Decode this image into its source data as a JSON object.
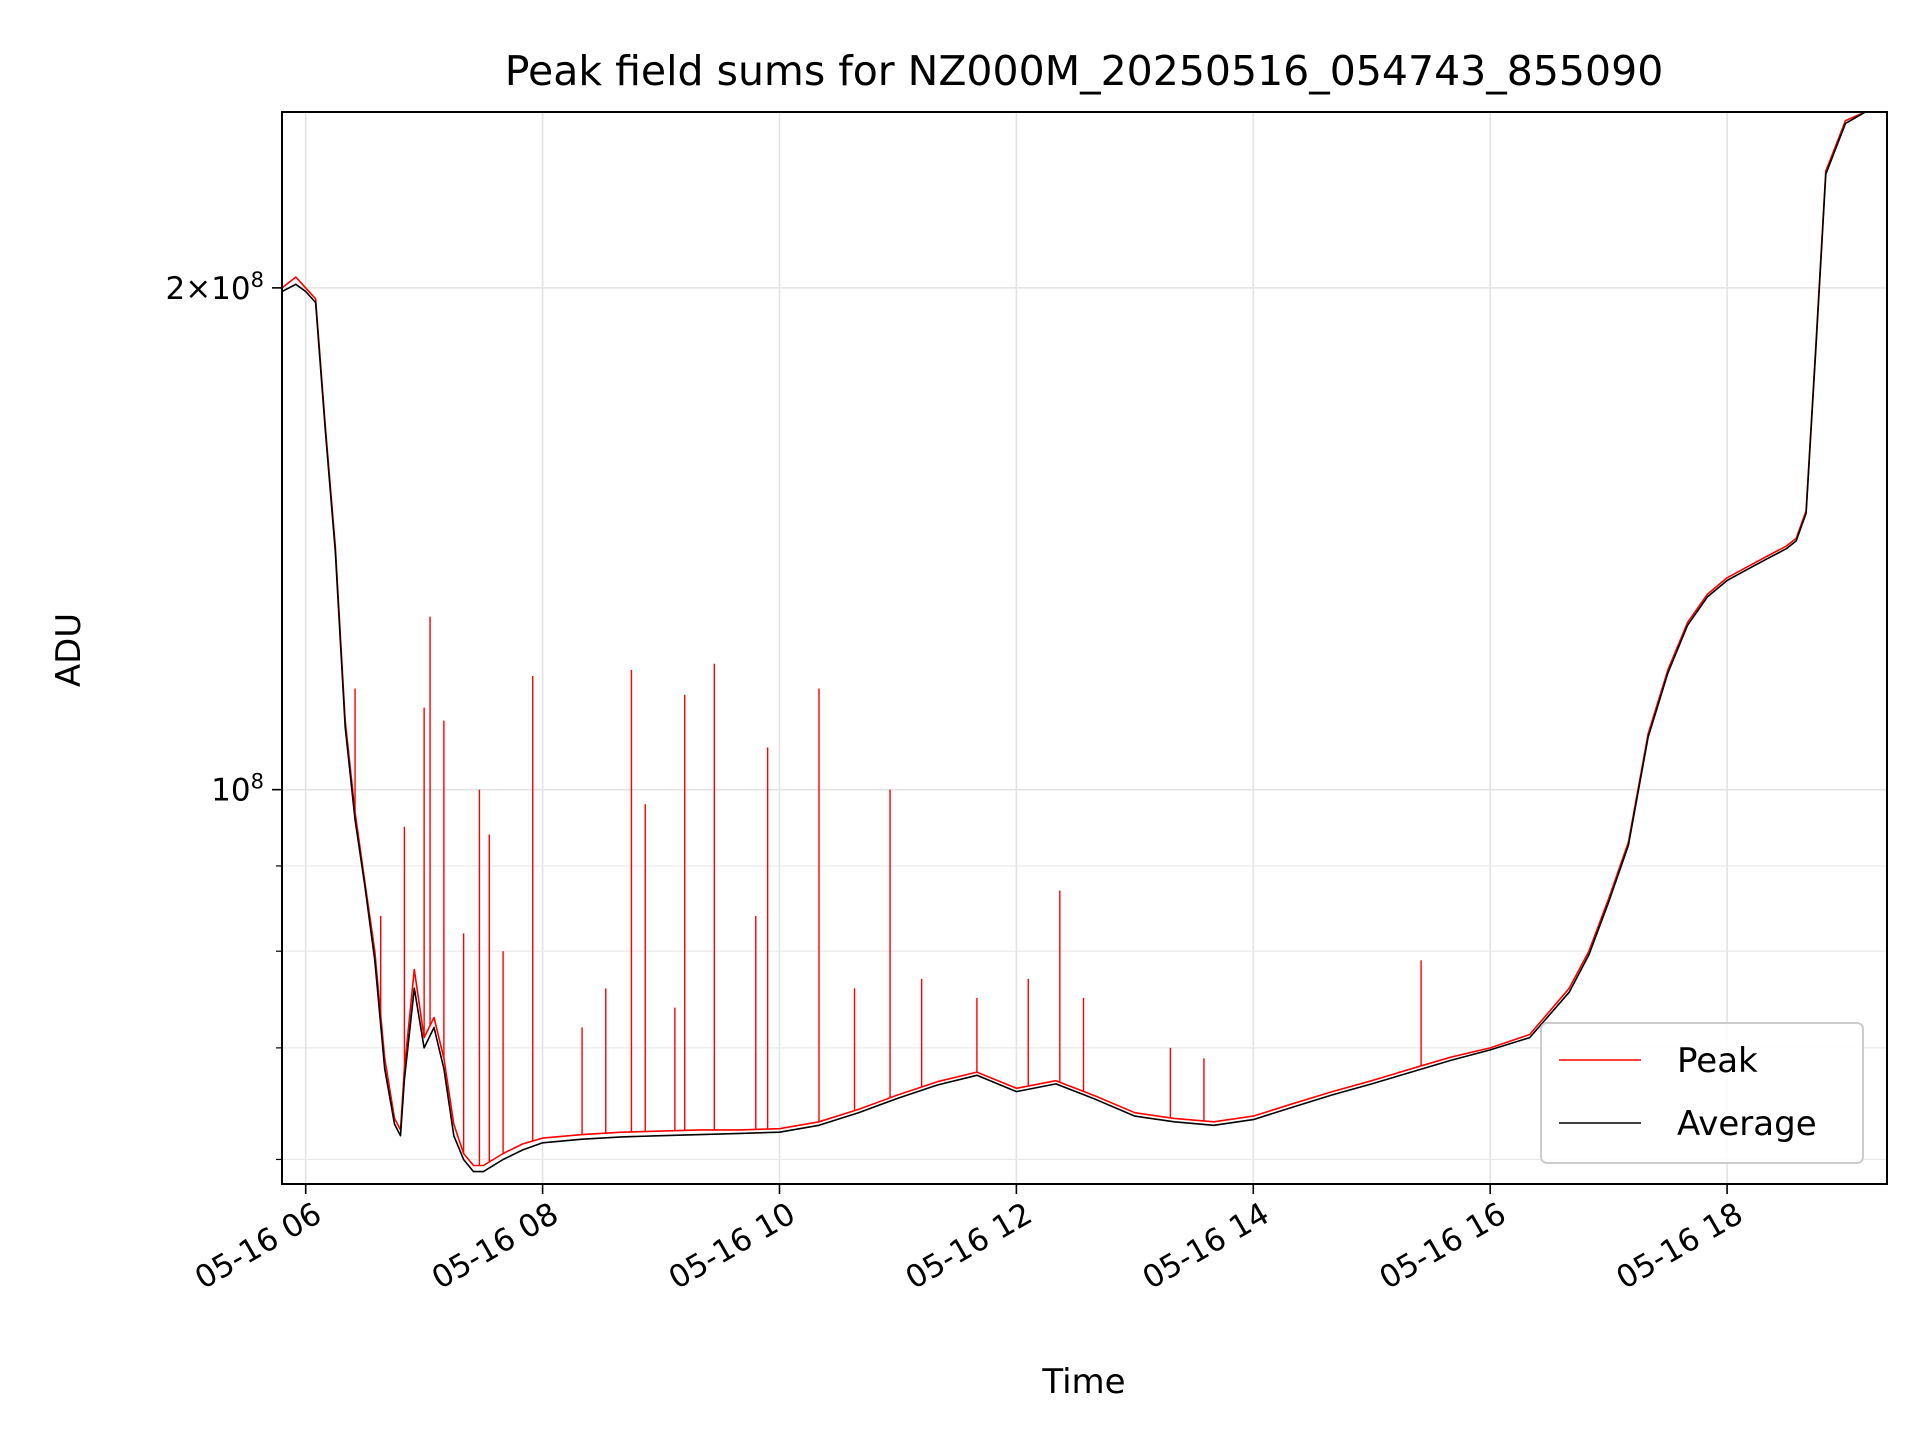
{
  "chart_data": {
    "type": "line",
    "title": "Peak field sums for NZ000M_20250516_054743_855090",
    "xlabel": "Time",
    "ylabel": "ADU",
    "x_scale": "time",
    "y_scale": "log",
    "xlim": [
      "2025-05-16 05:48",
      "2025-05-16 19:21"
    ],
    "ylim": [
      58000000,
      255000000
    ],
    "grid": true,
    "legend_position": "lower right",
    "x_ticks": [
      {
        "value": "2025-05-16 06:00",
        "label": "05-16 06"
      },
      {
        "value": "2025-05-16 08:00",
        "label": "05-16 08"
      },
      {
        "value": "2025-05-16 10:00",
        "label": "05-16 10"
      },
      {
        "value": "2025-05-16 12:00",
        "label": "05-16 12"
      },
      {
        "value": "2025-05-16 14:00",
        "label": "05-16 14"
      },
      {
        "value": "2025-05-16 16:00",
        "label": "05-16 16"
      },
      {
        "value": "2025-05-16 18:00",
        "label": "05-16 18"
      }
    ],
    "y_major_ticks": [
      {
        "value": 200000000,
        "mantissa": "2",
        "times": "×",
        "base": "10",
        "exp": "8"
      },
      {
        "value": 100000000,
        "mantissa": "",
        "times": "",
        "base": "10",
        "exp": "8"
      }
    ],
    "y_minor_ticks": [
      60000000,
      70000000,
      80000000,
      90000000
    ],
    "series": [
      {
        "name": "Peak",
        "color": "#ff0000",
        "x": [
          "2025-05-16 05:48",
          "2025-05-16 05:55",
          "2025-05-16 06:00",
          "2025-05-16 06:05",
          "2025-05-16 06:10",
          "2025-05-16 06:15",
          "2025-05-16 06:20",
          "2025-05-16 06:25",
          "2025-05-16 06:30",
          "2025-05-16 06:35",
          "2025-05-16 06:40",
          "2025-05-16 06:45",
          "2025-05-16 06:48",
          "2025-05-16 06:50",
          "2025-05-16 06:55",
          "2025-05-16 07:00",
          "2025-05-16 07:05",
          "2025-05-16 07:10",
          "2025-05-16 07:15",
          "2025-05-16 07:20",
          "2025-05-16 07:25",
          "2025-05-16 07:30",
          "2025-05-16 07:40",
          "2025-05-16 07:50",
          "2025-05-16 08:00",
          "2025-05-16 08:20",
          "2025-05-16 08:40",
          "2025-05-16 09:00",
          "2025-05-16 09:20",
          "2025-05-16 09:40",
          "2025-05-16 10:00",
          "2025-05-16 10:20",
          "2025-05-16 10:40",
          "2025-05-16 11:00",
          "2025-05-16 11:20",
          "2025-05-16 11:40",
          "2025-05-16 12:00",
          "2025-05-16 12:20",
          "2025-05-16 12:40",
          "2025-05-16 13:00",
          "2025-05-16 13:20",
          "2025-05-16 13:40",
          "2025-05-16 14:00",
          "2025-05-16 14:20",
          "2025-05-16 14:40",
          "2025-05-16 15:00",
          "2025-05-16 15:20",
          "2025-05-16 15:40",
          "2025-05-16 16:00",
          "2025-05-16 16:20",
          "2025-05-16 16:40",
          "2025-05-16 16:50",
          "2025-05-16 17:00",
          "2025-05-16 17:10",
          "2025-05-16 17:20",
          "2025-05-16 17:30",
          "2025-05-16 17:40",
          "2025-05-16 17:50",
          "2025-05-16 18:00",
          "2025-05-16 18:10",
          "2025-05-16 18:20",
          "2025-05-16 18:30",
          "2025-05-16 18:35",
          "2025-05-16 18:40",
          "2025-05-16 18:45",
          "2025-05-16 18:50",
          "2025-05-16 19:00",
          "2025-05-16 19:10",
          "2025-05-16 19:21"
        ],
        "y": [
          200000000,
          203000000,
          200000000,
          197000000,
          165000000,
          140000000,
          110000000,
          97000000,
          88000000,
          80000000,
          69000000,
          63500000,
          62500000,
          68000000,
          78000000,
          71000000,
          73000000,
          69000000,
          63000000,
          60500000,
          59500000,
          59500000,
          60500000,
          61300000,
          61800000,
          62100000,
          62300000,
          62400000,
          62500000,
          62500000,
          62600000,
          63200000,
          64300000,
          65600000,
          66800000,
          67700000,
          66200000,
          66900000,
          65500000,
          64000000,
          63500000,
          63200000,
          63700000,
          64800000,
          65900000,
          66900000,
          68000000,
          69100000,
          70000000,
          71300000,
          76000000,
          80000000,
          86000000,
          93000000,
          108000000,
          118000000,
          126000000,
          131000000,
          134000000,
          136000000,
          138000000,
          140000000,
          141500000,
          147000000,
          185000000,
          235000000,
          252000000,
          255000000,
          255000000
        ]
      },
      {
        "name": "Average",
        "color": "#000000",
        "x": [
          "2025-05-16 05:48",
          "2025-05-16 05:55",
          "2025-05-16 06:00",
          "2025-05-16 06:05",
          "2025-05-16 06:10",
          "2025-05-16 06:15",
          "2025-05-16 06:20",
          "2025-05-16 06:25",
          "2025-05-16 06:30",
          "2025-05-16 06:35",
          "2025-05-16 06:40",
          "2025-05-16 06:45",
          "2025-05-16 06:48",
          "2025-05-16 06:50",
          "2025-05-16 06:55",
          "2025-05-16 07:00",
          "2025-05-16 07:05",
          "2025-05-16 07:10",
          "2025-05-16 07:15",
          "2025-05-16 07:20",
          "2025-05-16 07:25",
          "2025-05-16 07:30",
          "2025-05-16 07:40",
          "2025-05-16 07:50",
          "2025-05-16 08:00",
          "2025-05-16 08:20",
          "2025-05-16 08:40",
          "2025-05-16 09:00",
          "2025-05-16 09:20",
          "2025-05-16 09:40",
          "2025-05-16 10:00",
          "2025-05-16 10:20",
          "2025-05-16 10:40",
          "2025-05-16 11:00",
          "2025-05-16 11:20",
          "2025-05-16 11:40",
          "2025-05-16 12:00",
          "2025-05-16 12:20",
          "2025-05-16 12:40",
          "2025-05-16 13:00",
          "2025-05-16 13:20",
          "2025-05-16 13:40",
          "2025-05-16 14:00",
          "2025-05-16 14:20",
          "2025-05-16 14:40",
          "2025-05-16 15:00",
          "2025-05-16 15:20",
          "2025-05-16 15:40",
          "2025-05-16 16:00",
          "2025-05-16 16:20",
          "2025-05-16 16:40",
          "2025-05-16 16:50",
          "2025-05-16 17:00",
          "2025-05-16 17:10",
          "2025-05-16 17:20",
          "2025-05-16 17:30",
          "2025-05-16 17:40",
          "2025-05-16 17:50",
          "2025-05-16 18:00",
          "2025-05-16 18:10",
          "2025-05-16 18:20",
          "2025-05-16 18:30",
          "2025-05-16 18:35",
          "2025-05-16 18:40",
          "2025-05-16 18:45",
          "2025-05-16 18:50",
          "2025-05-16 19:00",
          "2025-05-16 19:10",
          "2025-05-16 19:21"
        ],
        "y": [
          199000000,
          201000000,
          199000000,
          196000000,
          164000000,
          139000000,
          109000000,
          96000000,
          87500000,
          79000000,
          68000000,
          63000000,
          62000000,
          67000000,
          76000000,
          70000000,
          72000000,
          68000000,
          62000000,
          60000000,
          59000000,
          59000000,
          60000000,
          60800000,
          61400000,
          61700000,
          61900000,
          62000000,
          62100000,
          62200000,
          62300000,
          62900000,
          64000000,
          65300000,
          66500000,
          67400000,
          65900000,
          66600000,
          65200000,
          63700000,
          63200000,
          62900000,
          63400000,
          64500000,
          65600000,
          66600000,
          67700000,
          68800000,
          69800000,
          71000000,
          75600000,
          79600000,
          85600000,
          92600000,
          107500000,
          117500000,
          125500000,
          130500000,
          133500000,
          135500000,
          137500000,
          139500000,
          141000000,
          146500000,
          184000000,
          234000000,
          251000000,
          255000000,
          255000000
        ]
      }
    ],
    "peak_spikes": [
      {
        "x": "2025-05-16 06:25",
        "y": 115000000
      },
      {
        "x": "2025-05-16 06:38",
        "y": 84000000
      },
      {
        "x": "2025-05-16 06:50",
        "y": 95000000
      },
      {
        "x": "2025-05-16 07:00",
        "y": 112000000
      },
      {
        "x": "2025-05-16 07:03",
        "y": 127000000
      },
      {
        "x": "2025-05-16 07:10",
        "y": 110000000
      },
      {
        "x": "2025-05-16 07:20",
        "y": 82000000
      },
      {
        "x": "2025-05-16 07:28",
        "y": 100000000
      },
      {
        "x": "2025-05-16 07:33",
        "y": 94000000
      },
      {
        "x": "2025-05-16 07:40",
        "y": 80000000
      },
      {
        "x": "2025-05-16 07:55",
        "y": 117000000
      },
      {
        "x": "2025-05-16 08:20",
        "y": 72000000
      },
      {
        "x": "2025-05-16 08:32",
        "y": 76000000
      },
      {
        "x": "2025-05-16 08:45",
        "y": 118000000
      },
      {
        "x": "2025-05-16 08:52",
        "y": 98000000
      },
      {
        "x": "2025-05-16 09:07",
        "y": 74000000
      },
      {
        "x": "2025-05-16 09:12",
        "y": 114000000
      },
      {
        "x": "2025-05-16 09:27",
        "y": 119000000
      },
      {
        "x": "2025-05-16 09:48",
        "y": 84000000
      },
      {
        "x": "2025-05-16 09:54",
        "y": 106000000
      },
      {
        "x": "2025-05-16 10:20",
        "y": 115000000
      },
      {
        "x": "2025-05-16 10:38",
        "y": 76000000
      },
      {
        "x": "2025-05-16 10:56",
        "y": 100000000
      },
      {
        "x": "2025-05-16 11:12",
        "y": 77000000
      },
      {
        "x": "2025-05-16 11:40",
        "y": 75000000
      },
      {
        "x": "2025-05-16 12:06",
        "y": 77000000
      },
      {
        "x": "2025-05-16 12:22",
        "y": 87000000
      },
      {
        "x": "2025-05-16 12:34",
        "y": 75000000
      },
      {
        "x": "2025-05-16 13:18",
        "y": 70000000
      },
      {
        "x": "2025-05-16 13:35",
        "y": 69000000
      },
      {
        "x": "2025-05-16 15:25",
        "y": 79000000
      }
    ]
  }
}
